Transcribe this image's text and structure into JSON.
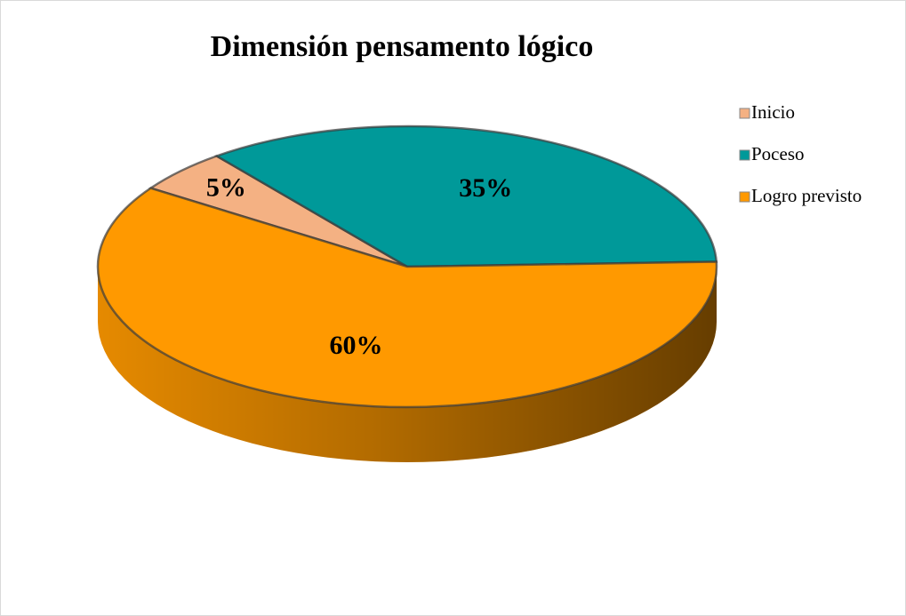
{
  "chart_data": {
    "type": "pie",
    "title": "Dimensión pensamento lógico",
    "categories": [
      "Inicio",
      "Poceso",
      "Logro previsto"
    ],
    "values": [
      5,
      35,
      60
    ],
    "value_labels": [
      "5%",
      "35%",
      "60%"
    ],
    "colors": [
      "#F4B183",
      "#009999",
      "#FF9900"
    ],
    "legend": "right"
  }
}
